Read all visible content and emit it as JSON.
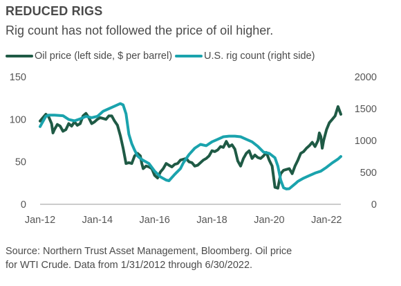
{
  "header": {
    "title": "REDUCED RIGS",
    "subtitle": "Rig count has not followed the price of oil higher."
  },
  "legend": {
    "oil_label": "Oil price (left side, $ per barrel)",
    "rig_label": "U.S. rig count (right side)"
  },
  "source": {
    "line1": "Source: Northern Trust Asset Management, Bloomberg. Oil price",
    "line2": "for WTI Crude. Data from 1/31/2012 through 6/30/2022."
  },
  "colors": {
    "oil": "#1f5a45",
    "rig": "#1aa3ad",
    "axis": "#999999"
  },
  "chart_data": {
    "type": "line",
    "x_tick_labels": [
      "Jan-12",
      "Jan-14",
      "Jan-16",
      "Jan-18",
      "Jan-20",
      "Jan-22"
    ],
    "x_range": [
      2012.0,
      2022.5
    ],
    "y_left": {
      "ticks": [
        "0",
        "50",
        "100",
        "150"
      ],
      "range": [
        0,
        150
      ]
    },
    "y_right": {
      "ticks": [
        "0",
        "500",
        "1000",
        "1500",
        "2000"
      ],
      "range": [
        0,
        2000
      ]
    },
    "grid": false,
    "legend_position": "top",
    "series": [
      {
        "name": "Oil price (left side, $ per barrel)",
        "axis": "left",
        "color": "#1f5a45",
        "points": [
          [
            2012.0,
            98
          ],
          [
            2012.1,
            102
          ],
          [
            2012.2,
            106
          ],
          [
            2012.3,
            103
          ],
          [
            2012.4,
            95
          ],
          [
            2012.45,
            84
          ],
          [
            2012.5,
            88
          ],
          [
            2012.6,
            94
          ],
          [
            2012.7,
            92
          ],
          [
            2012.8,
            86
          ],
          [
            2012.9,
            88
          ],
          [
            2013.0,
            95
          ],
          [
            2013.1,
            92
          ],
          [
            2013.2,
            97
          ],
          [
            2013.3,
            93
          ],
          [
            2013.4,
            95
          ],
          [
            2013.5,
            104
          ],
          [
            2013.6,
            107
          ],
          [
            2013.7,
            102
          ],
          [
            2013.8,
            95
          ],
          [
            2013.9,
            97
          ],
          [
            2014.0,
            100
          ],
          [
            2014.1,
            102
          ],
          [
            2014.2,
            101
          ],
          [
            2014.3,
            100
          ],
          [
            2014.4,
            104
          ],
          [
            2014.5,
            104
          ],
          [
            2014.6,
            98
          ],
          [
            2014.7,
            93
          ],
          [
            2014.8,
            81
          ],
          [
            2014.9,
            66
          ],
          [
            2015.0,
            48
          ],
          [
            2015.1,
            49
          ],
          [
            2015.2,
            48
          ],
          [
            2015.3,
            57
          ],
          [
            2015.4,
            60
          ],
          [
            2015.5,
            57
          ],
          [
            2015.55,
            48
          ],
          [
            2015.6,
            42
          ],
          [
            2015.7,
            45
          ],
          [
            2015.8,
            44
          ],
          [
            2015.9,
            42
          ],
          [
            2016.0,
            34
          ],
          [
            2016.1,
            31
          ],
          [
            2016.2,
            38
          ],
          [
            2016.3,
            42
          ],
          [
            2016.4,
            48
          ],
          [
            2016.5,
            46
          ],
          [
            2016.6,
            44
          ],
          [
            2016.7,
            47
          ],
          [
            2016.8,
            48
          ],
          [
            2016.9,
            52
          ],
          [
            2017.0,
            53
          ],
          [
            2017.1,
            54
          ],
          [
            2017.2,
            50
          ],
          [
            2017.3,
            49
          ],
          [
            2017.4,
            45
          ],
          [
            2017.5,
            46
          ],
          [
            2017.6,
            49
          ],
          [
            2017.7,
            52
          ],
          [
            2017.8,
            54
          ],
          [
            2017.9,
            57
          ],
          [
            2018.0,
            63
          ],
          [
            2018.1,
            62
          ],
          [
            2018.2,
            64
          ],
          [
            2018.3,
            68
          ],
          [
            2018.4,
            67
          ],
          [
            2018.5,
            74
          ],
          [
            2018.6,
            68
          ],
          [
            2018.7,
            70
          ],
          [
            2018.8,
            65
          ],
          [
            2018.9,
            51
          ],
          [
            2019.0,
            45
          ],
          [
            2019.1,
            54
          ],
          [
            2019.2,
            60
          ],
          [
            2019.3,
            63
          ],
          [
            2019.4,
            54
          ],
          [
            2019.5,
            58
          ],
          [
            2019.6,
            55
          ],
          [
            2019.7,
            54
          ],
          [
            2019.8,
            57
          ],
          [
            2019.9,
            61
          ],
          [
            2020.0,
            52
          ],
          [
            2020.1,
            45
          ],
          [
            2020.2,
            20
          ],
          [
            2020.3,
            19
          ],
          [
            2020.4,
            36
          ],
          [
            2020.5,
            40
          ],
          [
            2020.6,
            41
          ],
          [
            2020.7,
            42
          ],
          [
            2020.8,
            36
          ],
          [
            2020.9,
            45
          ],
          [
            2021.0,
            52
          ],
          [
            2021.1,
            60
          ],
          [
            2021.2,
            62
          ],
          [
            2021.3,
            66
          ],
          [
            2021.4,
            69
          ],
          [
            2021.5,
            73
          ],
          [
            2021.6,
            68
          ],
          [
            2021.7,
            75
          ],
          [
            2021.75,
            84
          ],
          [
            2021.8,
            80
          ],
          [
            2021.85,
            66
          ],
          [
            2021.9,
            75
          ],
          [
            2022.0,
            88
          ],
          [
            2022.1,
            96
          ],
          [
            2022.2,
            100
          ],
          [
            2022.3,
            104
          ],
          [
            2022.4,
            115
          ],
          [
            2022.5,
            106
          ]
        ]
      },
      {
        "name": "U.S. rig count (right side)",
        "axis": "right",
        "color": "#1aa3ad",
        "points": [
          [
            2012.0,
            1220
          ],
          [
            2012.1,
            1300
          ],
          [
            2012.2,
            1380
          ],
          [
            2012.3,
            1400
          ],
          [
            2012.5,
            1400
          ],
          [
            2012.8,
            1390
          ],
          [
            2013.0,
            1330
          ],
          [
            2013.2,
            1310
          ],
          [
            2013.4,
            1340
          ],
          [
            2013.6,
            1380
          ],
          [
            2013.8,
            1360
          ],
          [
            2014.0,
            1380
          ],
          [
            2014.2,
            1460
          ],
          [
            2014.4,
            1500
          ],
          [
            2014.6,
            1540
          ],
          [
            2014.8,
            1580
          ],
          [
            2014.9,
            1560
          ],
          [
            2015.0,
            1420
          ],
          [
            2015.1,
            1100
          ],
          [
            2015.2,
            950
          ],
          [
            2015.3,
            850
          ],
          [
            2015.4,
            760
          ],
          [
            2015.5,
            720
          ],
          [
            2015.6,
            690
          ],
          [
            2015.8,
            640
          ],
          [
            2016.0,
            520
          ],
          [
            2016.2,
            430
          ],
          [
            2016.4,
            380
          ],
          [
            2016.5,
            370
          ],
          [
            2016.7,
            470
          ],
          [
            2016.9,
            560
          ],
          [
            2017.0,
            650
          ],
          [
            2017.2,
            780
          ],
          [
            2017.4,
            880
          ],
          [
            2017.6,
            940
          ],
          [
            2017.8,
            920
          ],
          [
            2018.0,
            980
          ],
          [
            2018.2,
            1020
          ],
          [
            2018.4,
            1060
          ],
          [
            2018.6,
            1070
          ],
          [
            2018.8,
            1070
          ],
          [
            2019.0,
            1060
          ],
          [
            2019.2,
            1020
          ],
          [
            2019.4,
            980
          ],
          [
            2019.6,
            910
          ],
          [
            2019.8,
            820
          ],
          [
            2020.0,
            800
          ],
          [
            2020.2,
            730
          ],
          [
            2020.3,
            600
          ],
          [
            2020.4,
            380
          ],
          [
            2020.5,
            260
          ],
          [
            2020.6,
            240
          ],
          [
            2020.7,
            245
          ],
          [
            2020.9,
            320
          ],
          [
            2021.0,
            360
          ],
          [
            2021.2,
            410
          ],
          [
            2021.4,
            450
          ],
          [
            2021.6,
            490
          ],
          [
            2021.8,
            520
          ],
          [
            2022.0,
            580
          ],
          [
            2022.2,
            650
          ],
          [
            2022.4,
            710
          ],
          [
            2022.5,
            750
          ]
        ]
      }
    ]
  }
}
